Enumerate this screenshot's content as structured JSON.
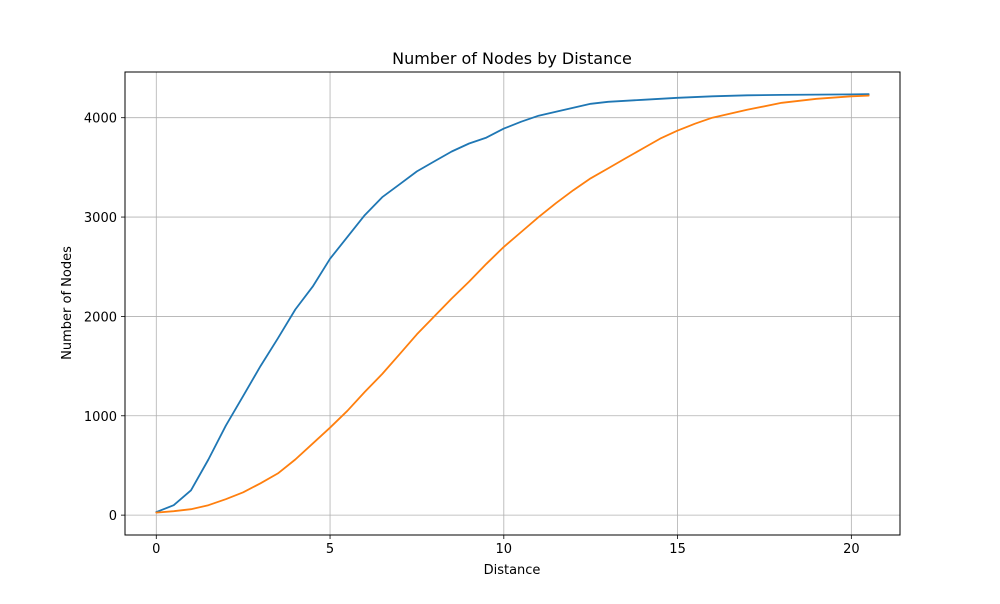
{
  "chart_data": {
    "type": "line",
    "title": "Number of Nodes by Distance",
    "xlabel": "Distance",
    "ylabel": "Number of Nodes",
    "xlim": [
      -0.9,
      21.4
    ],
    "ylim": [
      -200,
      4460
    ],
    "xticks": [
      0,
      5,
      10,
      15,
      20
    ],
    "yticks": [
      0,
      1000,
      2000,
      3000,
      4000
    ],
    "grid": true,
    "legend": "none",
    "colors": [
      "#1f77b4",
      "#ff7f0e"
    ],
    "series": [
      {
        "color": "#1f77b4",
        "x": [
          0,
          0.5,
          1.0,
          1.5,
          2.0,
          2.5,
          3.0,
          3.5,
          4.0,
          4.5,
          5.0,
          5.5,
          6.0,
          6.5,
          7.0,
          7.5,
          8.0,
          8.5,
          9.0,
          9.5,
          10.0,
          10.5,
          11.0,
          11.5,
          12.0,
          12.5,
          13.0,
          14.0,
          15.0,
          16.0,
          17.0,
          18.0,
          19.0,
          20.0,
          20.5
        ],
        "y": [
          30,
          100,
          250,
          560,
          900,
          1200,
          1500,
          1780,
          2070,
          2300,
          2580,
          2800,
          3020,
          3200,
          3330,
          3460,
          3560,
          3660,
          3740,
          3800,
          3890,
          3960,
          4020,
          4060,
          4100,
          4140,
          4160,
          4180,
          4200,
          4215,
          4225,
          4230,
          4233,
          4235,
          4237
        ]
      },
      {
        "color": "#ff7f0e",
        "x": [
          0,
          0.5,
          1.0,
          1.5,
          2.0,
          2.5,
          3.0,
          3.5,
          4.0,
          4.5,
          5.0,
          5.5,
          6.0,
          6.5,
          7.0,
          7.5,
          8.0,
          8.5,
          9.0,
          9.5,
          10.0,
          10.5,
          11.0,
          11.5,
          12.0,
          12.5,
          13.0,
          13.5,
          14.0,
          14.5,
          15.0,
          15.5,
          16.0,
          17.0,
          18.0,
          19.0,
          20.0,
          20.5
        ],
        "y": [
          25,
          40,
          60,
          100,
          160,
          230,
          320,
          420,
          560,
          720,
          880,
          1050,
          1240,
          1420,
          1620,
          1820,
          2000,
          2180,
          2350,
          2530,
          2700,
          2850,
          3000,
          3140,
          3270,
          3390,
          3490,
          3590,
          3690,
          3790,
          3870,
          3940,
          4000,
          4080,
          4150,
          4190,
          4215,
          4222
        ]
      }
    ]
  }
}
